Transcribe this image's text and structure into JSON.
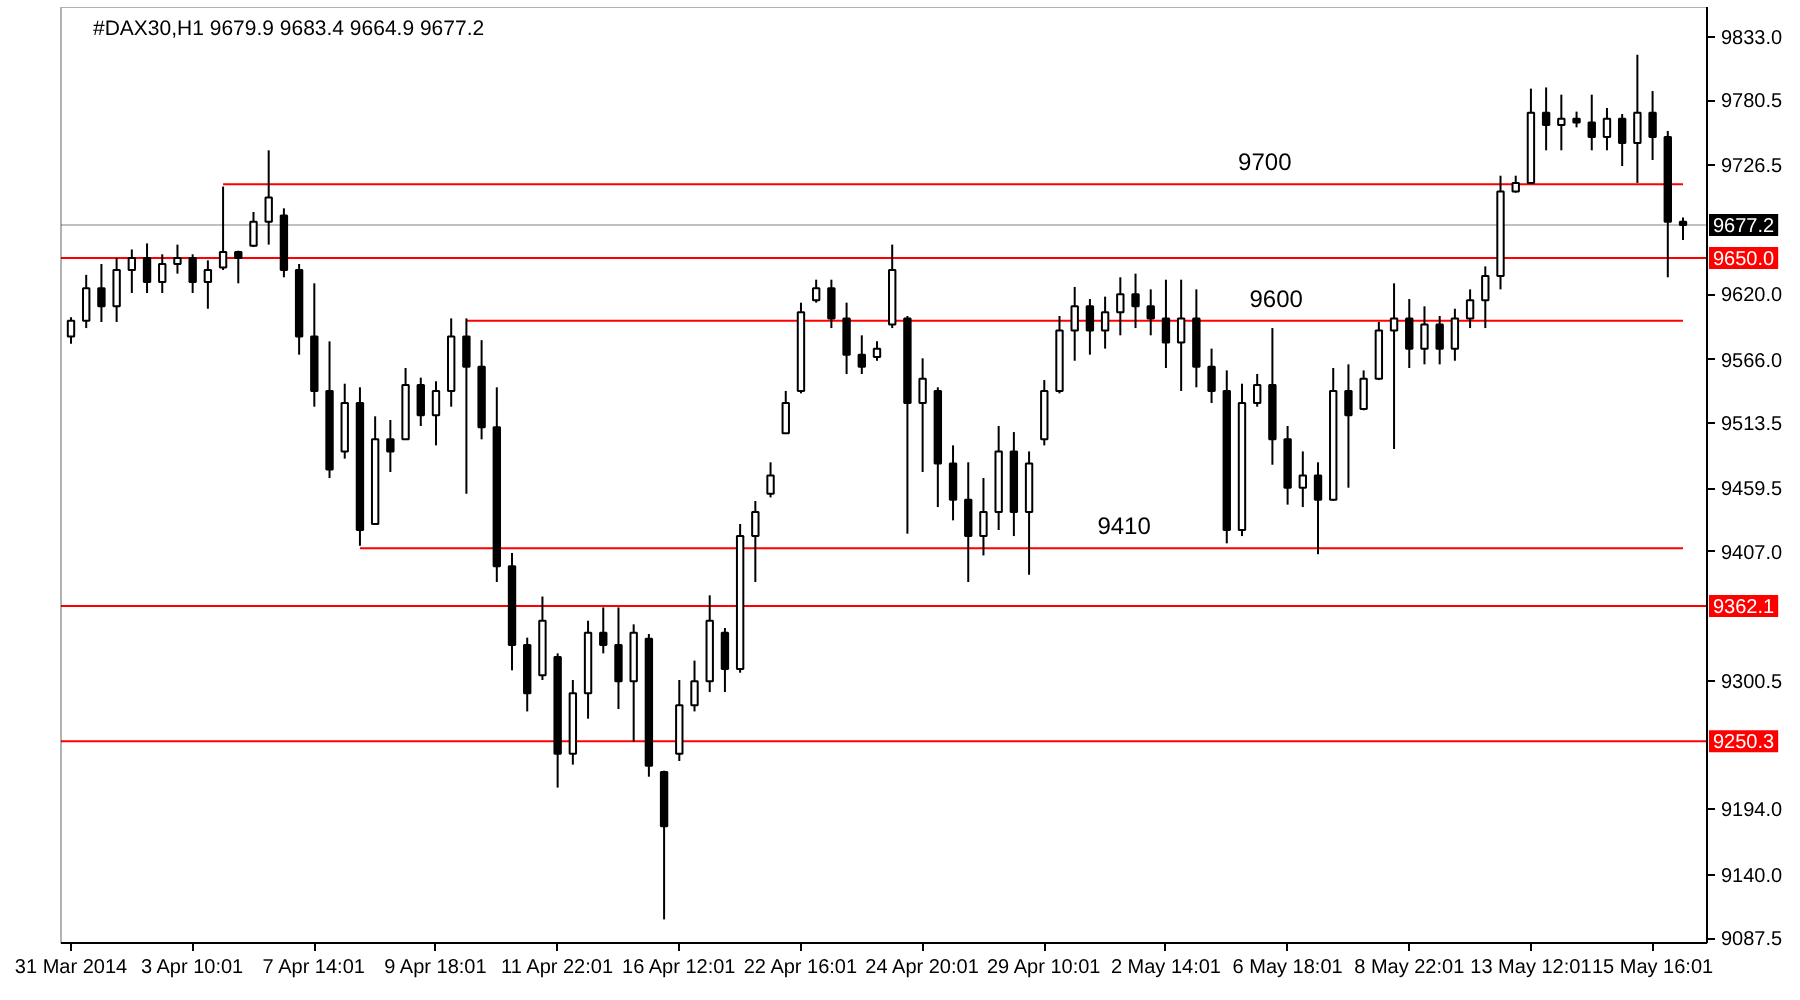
{
  "chart_data": {
    "type": "candlestick",
    "title": "#DAX30,H1 9679.9 9683.4 9664.9 9677.2",
    "categories": [
      "31 Mar 2014",
      null,
      null,
      null,
      null,
      null,
      null,
      null,
      "3 Apr 10:01",
      null,
      null,
      null,
      null,
      null,
      null,
      null,
      "7 Apr 14:01",
      null,
      null,
      null,
      null,
      null,
      null,
      null,
      "9 Apr 18:01",
      null,
      null,
      null,
      null,
      null,
      null,
      null,
      "11 Apr 22:01",
      null,
      null,
      null,
      null,
      null,
      null,
      null,
      "16 Apr 12:01",
      null,
      null,
      null,
      null,
      null,
      null,
      null,
      "22 Apr 16:01",
      null,
      null,
      null,
      null,
      null,
      null,
      null,
      "24 Apr 20:01",
      null,
      null,
      null,
      null,
      null,
      null,
      null,
      "29 Apr 10:01",
      null,
      null,
      null,
      null,
      null,
      null,
      null,
      "2 May 14:01",
      null,
      null,
      null,
      null,
      null,
      null,
      null,
      "6 May 18:01",
      null,
      null,
      null,
      null,
      null,
      null,
      null,
      "8 May 22:01",
      null,
      null,
      null,
      null,
      null,
      null,
      null,
      "13 May 12:01",
      null,
      null,
      null,
      null,
      null,
      null,
      null,
      "15 May 16:01",
      null,
      null
    ],
    "series": [
      {
        "color": "#000000",
        "ohlc": [
          [
            9585,
            9601,
            9579,
            9598
          ],
          [
            9598,
            9636,
            9592,
            9625
          ],
          [
            9625,
            9645,
            9597,
            9610
          ],
          [
            9610,
            9650,
            9597,
            9640
          ],
          [
            9640,
            9657,
            9621,
            9650
          ],
          [
            9650,
            9662,
            9621,
            9630
          ],
          [
            9630,
            9653,
            9621,
            9645
          ],
          [
            9645,
            9661,
            9637,
            9650
          ],
          [
            9650,
            9653,
            9621,
            9630
          ],
          [
            9630,
            9648,
            9608,
            9640
          ],
          [
            9642,
            9709,
            9640,
            9655
          ],
          [
            9655,
            9656,
            9629,
            9650
          ],
          [
            9660,
            9688,
            9659,
            9680
          ],
          [
            9680,
            9739,
            9661,
            9700
          ],
          [
            9685,
            9691,
            9634,
            9640
          ],
          [
            9640,
            9645,
            9570,
            9585
          ],
          [
            9585,
            9629,
            9527,
            9540
          ],
          [
            9540,
            9581,
            9468,
            9475
          ],
          [
            9490,
            9546,
            9484,
            9530
          ],
          [
            9530,
            9543,
            9412,
            9425
          ],
          [
            9430,
            9519,
            9430,
            9500
          ],
          [
            9500,
            9516,
            9473,
            9490
          ],
          [
            9500,
            9559,
            9500,
            9545
          ],
          [
            9545,
            9551,
            9511,
            9520
          ],
          [
            9520,
            9548,
            9495,
            9540
          ],
          [
            9540,
            9600,
            9527,
            9585
          ],
          [
            9585,
            9600,
            9455,
            9560
          ],
          [
            9560,
            9582,
            9500,
            9510
          ],
          [
            9510,
            9543,
            9382,
            9395
          ],
          [
            9395,
            9406,
            9309,
            9330
          ],
          [
            9330,
            9336,
            9275,
            9290
          ],
          [
            9305,
            9370,
            9301,
            9350
          ],
          [
            9320,
            9323,
            9212,
            9240
          ],
          [
            9240,
            9301,
            9231,
            9290
          ],
          [
            9290,
            9350,
            9269,
            9340
          ],
          [
            9340,
            9361,
            9323,
            9330
          ],
          [
            9330,
            9361,
            9277,
            9300
          ],
          [
            9300,
            9347,
            9250,
            9340
          ],
          [
            9335,
            9339,
            9221,
            9230
          ],
          [
            9225,
            9226,
            9103,
            9180
          ],
          [
            9240,
            9301,
            9234,
            9280
          ],
          [
            9280,
            9317,
            9275,
            9300
          ],
          [
            9300,
            9371,
            9291,
            9350
          ],
          [
            9340,
            9344,
            9291,
            9310
          ],
          [
            9310,
            9430,
            9307,
            9420
          ],
          [
            9420,
            9449,
            9382,
            9440
          ],
          [
            9455,
            9481,
            9452,
            9470
          ],
          [
            9505,
            9540,
            9505,
            9530
          ],
          [
            9540,
            9613,
            9538,
            9605
          ],
          [
            9615,
            9632,
            9613,
            9625
          ],
          [
            9625,
            9632,
            9592,
            9600
          ],
          [
            9600,
            9613,
            9554,
            9570
          ],
          [
            9570,
            9586,
            9554,
            9560
          ],
          [
            9568,
            9581,
            9565,
            9575
          ],
          [
            9595,
            9661,
            9592,
            9640
          ],
          [
            9600,
            9602,
            9422,
            9530
          ],
          [
            9530,
            9567,
            9473,
            9550
          ],
          [
            9540,
            9543,
            9444,
            9480
          ],
          [
            9480,
            9495,
            9433,
            9450
          ],
          [
            9450,
            9481,
            9382,
            9420
          ],
          [
            9420,
            9468,
            9404,
            9440
          ],
          [
            9440,
            9511,
            9425,
            9490
          ],
          [
            9490,
            9506,
            9420,
            9440
          ],
          [
            9440,
            9490,
            9388,
            9480
          ],
          [
            9500,
            9549,
            9495,
            9540
          ],
          [
            9540,
            9602,
            9538,
            9590
          ],
          [
            9590,
            9626,
            9565,
            9610
          ],
          [
            9610,
            9616,
            9570,
            9590
          ],
          [
            9590,
            9618,
            9575,
            9605
          ],
          [
            9605,
            9634,
            9586,
            9620
          ],
          [
            9620,
            9637,
            9592,
            9610
          ],
          [
            9610,
            9624,
            9586,
            9600
          ],
          [
            9600,
            9632,
            9559,
            9580
          ],
          [
            9580,
            9632,
            9540,
            9600
          ],
          [
            9600,
            9624,
            9543,
            9560
          ],
          [
            9560,
            9575,
            9530,
            9540
          ],
          [
            9540,
            9557,
            9414,
            9425
          ],
          [
            9425,
            9546,
            9420,
            9530
          ],
          [
            9530,
            9554,
            9527,
            9545
          ],
          [
            9545,
            9592,
            9479,
            9500
          ],
          [
            9500,
            9511,
            9446,
            9460
          ],
          [
            9460,
            9490,
            9444,
            9470
          ],
          [
            9470,
            9481,
            9405,
            9450
          ],
          [
            9450,
            9559,
            9449,
            9540
          ],
          [
            9540,
            9562,
            9460,
            9520
          ],
          [
            9525,
            9557,
            9524,
            9550
          ],
          [
            9550,
            9597,
            9549,
            9590
          ],
          [
            9590,
            9629,
            9492,
            9600
          ],
          [
            9600,
            9616,
            9559,
            9575
          ],
          [
            9575,
            9610,
            9562,
            9595
          ],
          [
            9595,
            9602,
            9562,
            9575
          ],
          [
            9575,
            9608,
            9565,
            9600
          ],
          [
            9600,
            9624,
            9592,
            9615
          ],
          [
            9615,
            9643,
            9592,
            9635
          ],
          [
            9635,
            9718,
            9624,
            9705
          ],
          [
            9705,
            9718,
            9704,
            9712
          ],
          [
            9712,
            9790,
            9712,
            9770
          ],
          [
            9770,
            9791,
            9739,
            9760
          ],
          [
            9760,
            9785,
            9739,
            9765
          ],
          [
            9765,
            9771,
            9758,
            9762
          ],
          [
            9762,
            9785,
            9739,
            9750
          ],
          [
            9750,
            9774,
            9739,
            9765
          ],
          [
            9765,
            9769,
            9726,
            9745
          ],
          [
            9745,
            9818,
            9712,
            9770
          ],
          [
            9770,
            9788,
            9731,
            9750
          ],
          [
            9750,
            9755,
            9634,
            9680
          ],
          [
            9679.9,
            9683.4,
            9664.9,
            9677.2
          ]
        ]
      },
      {
        "type": "line",
        "color": "#ff0000",
        "values": [
          null,
          null,
          null,
          null,
          null,
          null,
          null,
          null,
          null,
          null,
          9711,
          9711,
          9711,
          9711,
          9711,
          9711,
          9711,
          9711,
          9711,
          9711,
          9711,
          9711,
          9711,
          9711,
          9711,
          9711,
          9711,
          9711,
          9711,
          9711,
          9711,
          9711,
          9711,
          9711,
          9711,
          9711,
          9711,
          9711,
          9711,
          9711,
          9711,
          9711,
          9711,
          9711,
          9711,
          9711,
          9711,
          9711,
          9711,
          9711,
          9711,
          9711,
          9711,
          9711,
          9711,
          9711,
          9711,
          9711,
          9711,
          9711,
          9711,
          9711,
          9711,
          9711,
          9711,
          9711,
          9711,
          9711,
          9711,
          9711,
          9711,
          9711,
          9711,
          9711,
          9711,
          9711,
          9711,
          9711,
          9711,
          9711,
          9711,
          9711,
          9711,
          9711,
          9711,
          9711,
          9711,
          9711,
          9711,
          9711,
          9711,
          9711,
          9711,
          9711,
          9711,
          9711,
          9711,
          9711,
          9711,
          9711,
          9711,
          9711,
          9711,
          9711,
          9711,
          9711,
          9711
        ]
      },
      {
        "type": "line",
        "color": "#ff0000",
        "values": [
          null,
          null,
          null,
          null,
          null,
          null,
          null,
          null,
          null,
          null,
          null,
          null,
          null,
          null,
          null,
          null,
          null,
          null,
          null,
          null,
          null,
          null,
          null,
          null,
          null,
          null,
          9598,
          9598,
          9598,
          9598,
          9598,
          9598,
          9598,
          9598,
          9598,
          9598,
          9598,
          9598,
          9598,
          9598,
          9598,
          9598,
          9598,
          9598,
          9598,
          9598,
          9598,
          9598,
          9598,
          9598,
          9598,
          9598,
          9598,
          9598,
          9598,
          9598,
          9598,
          9598,
          9598,
          9598,
          9598,
          9598,
          9598,
          9598,
          9598,
          9598,
          9598,
          9598,
          9598,
          9598,
          9598,
          9598,
          9598,
          9598,
          9598,
          9598,
          9598,
          9598,
          9598,
          9598,
          9598,
          9598,
          9598,
          9598,
          9598,
          9598,
          9598,
          9598,
          9598,
          9598,
          9598,
          9598,
          9598,
          9598,
          9598,
          9598,
          9598,
          9598,
          9598,
          9598,
          9598,
          9598,
          9598,
          9598,
          9598,
          9598,
          9598
        ]
      },
      {
        "type": "line",
        "color": "#ff0000",
        "values": [
          null,
          null,
          null,
          null,
          null,
          null,
          null,
          null,
          null,
          null,
          null,
          null,
          null,
          null,
          null,
          null,
          null,
          null,
          null,
          9410,
          9410,
          9410,
          9410,
          9410,
          9410,
          9410,
          9410,
          9410,
          9410,
          9410,
          9410,
          9410,
          9410,
          9410,
          9410,
          9410,
          9410,
          9410,
          9410,
          9410,
          9410,
          9410,
          9410,
          9410,
          9410,
          9410,
          9410,
          9410,
          9410,
          9410,
          9410,
          9410,
          9410,
          9410,
          9410,
          9410,
          9410,
          9410,
          9410,
          9410,
          9410,
          9410,
          9410,
          9410,
          9410,
          9410,
          9410,
          9410,
          9410,
          9410,
          9410,
          9410,
          9410,
          9410,
          9410,
          9410,
          9410,
          9410,
          9410,
          9410,
          9410,
          9410,
          9410,
          9410,
          9410,
          9410,
          9410,
          9410,
          9410,
          9410,
          9410,
          9410,
          9410,
          9410,
          9410,
          9410,
          9410,
          9410,
          9410,
          9410,
          9410,
          9410,
          9410,
          9410,
          9410,
          9410,
          9410
        ]
      }
    ],
    "ylim": [
      9083.5,
      9857.5
    ],
    "yticks": [
      {
        "value": 9833.0,
        "label": "9833.0"
      },
      {
        "value": 9780.5,
        "label": "9780.5"
      },
      {
        "value": 9726.5,
        "label": "9726.5"
      },
      {
        "value": 9620.0,
        "label": "9620.0"
      },
      {
        "value": 9566.0,
        "label": "9566.0"
      },
      {
        "value": 9513.5,
        "label": "9513.5"
      },
      {
        "value": 9459.5,
        "label": "9459.5"
      },
      {
        "value": 9407.0,
        "label": "9407.0"
      },
      {
        "value": 9300.5,
        "label": "9300.5"
      },
      {
        "value": 9194.0,
        "label": "9194.0"
      },
      {
        "value": 9140.0,
        "label": "9140.0"
      },
      {
        "value": 9087.5,
        "label": "9087.5"
      }
    ],
    "ref_lines": [
      {
        "axis": "y",
        "value": 9677.2,
        "label": "9677.2",
        "color": "#c0c0c0"
      },
      {
        "axis": "y",
        "value": 9650.0,
        "label": "9650.0",
        "color": "#ff0000"
      },
      {
        "axis": "y",
        "value": 9362.1,
        "label": "9362.1",
        "color": "#ff0000"
      },
      {
        "axis": "y",
        "value": 9250.3,
        "label": "9250.3",
        "color": "#ff0000"
      }
    ],
    "annotations": [
      {
        "text": "9700",
        "y": 9711
      },
      {
        "text": "9600",
        "y": 9598
      },
      {
        "text": "9410",
        "y": 9410
      }
    ],
    "grid": false
  }
}
